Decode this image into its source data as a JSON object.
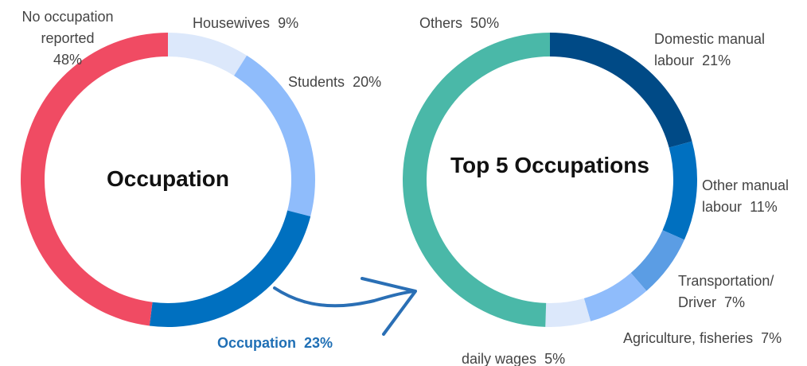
{
  "chart_data": [
    {
      "type": "pie",
      "title": "Occupation",
      "categories": [
        "Housewives",
        "Students",
        "Occupation",
        "No occupation reported"
      ],
      "values": [
        9,
        20,
        23,
        48
      ],
      "value_labels": [
        "9%",
        "20%",
        "23%",
        "48%"
      ],
      "colors": [
        "#dce8fb",
        "#8fbcfb",
        "#0070c0",
        "#f04b63"
      ]
    },
    {
      "type": "pie",
      "title": "Top 5 Occupations",
      "categories": [
        "Domestic manual labour",
        "Other manual labour",
        "Transportation/ Driver",
        "Agriculture, fisheries",
        "daily wages",
        "Others"
      ],
      "values": [
        21,
        11,
        7,
        7,
        5,
        50
      ],
      "value_labels": [
        "21%",
        "11%",
        "7%",
        "7%",
        "5%",
        "50%"
      ],
      "colors": [
        "#004a86",
        "#0070c0",
        "#5b9de4",
        "#8fbcfb",
        "#dce8fb",
        "#4ab8a8"
      ]
    }
  ]
}
